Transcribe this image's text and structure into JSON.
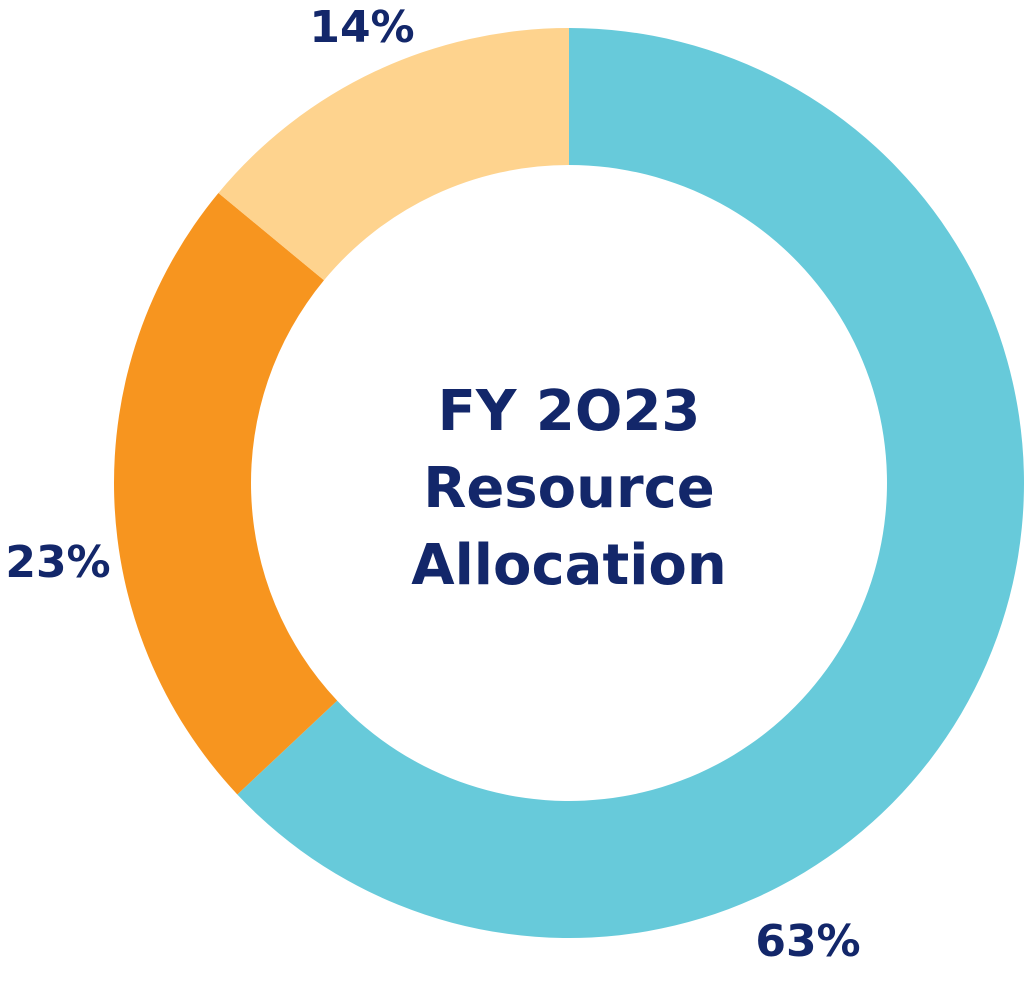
{
  "chart_data": {
    "type": "pie",
    "variant": "donut",
    "title_lines": [
      "FY 2O23",
      "Resource",
      "Allocation"
    ],
    "slices": [
      {
        "value": 63,
        "label": "63%",
        "color": "#67cada"
      },
      {
        "value": 23,
        "label": "23%",
        "color": "#f7951f"
      },
      {
        "value": 14,
        "label": "14%",
        "color": "#fed38e"
      }
    ],
    "start": "12 o'clock",
    "direction": "clockwise"
  },
  "colors": {
    "text": "#13276a",
    "background": "#ffffff"
  }
}
